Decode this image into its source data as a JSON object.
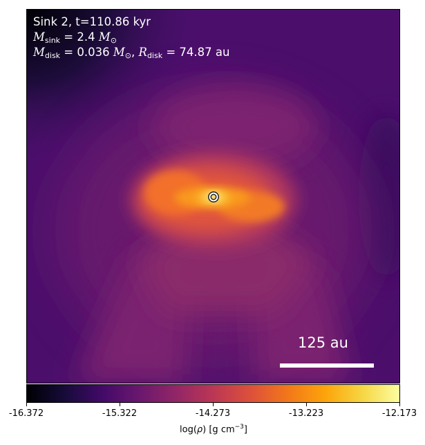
{
  "panel": {
    "title_line": "Sink 2, t=110.86 kyr",
    "sink_mass_value": "2.4",
    "disk_mass_value": "0.036",
    "disk_radius_value": "74.87 au",
    "sink_sub": "sink",
    "disk_sub": "disk",
    "sun_symbol": "⊙"
  },
  "scale_bar": {
    "label": "125 au"
  },
  "colorbar": {
    "ticks": [
      "-16.372",
      "-15.322",
      "-14.273",
      "-13.223",
      "-12.173"
    ],
    "label_prefix": "log(",
    "label_rho": "ρ",
    "label_mid": ") [g cm",
    "label_exp": "−3",
    "label_suffix": "]",
    "colormap": "inferno"
  },
  "colors": {
    "background": "#4a1070",
    "sink_marker": "#ffffff",
    "text": "#ffffff"
  }
}
